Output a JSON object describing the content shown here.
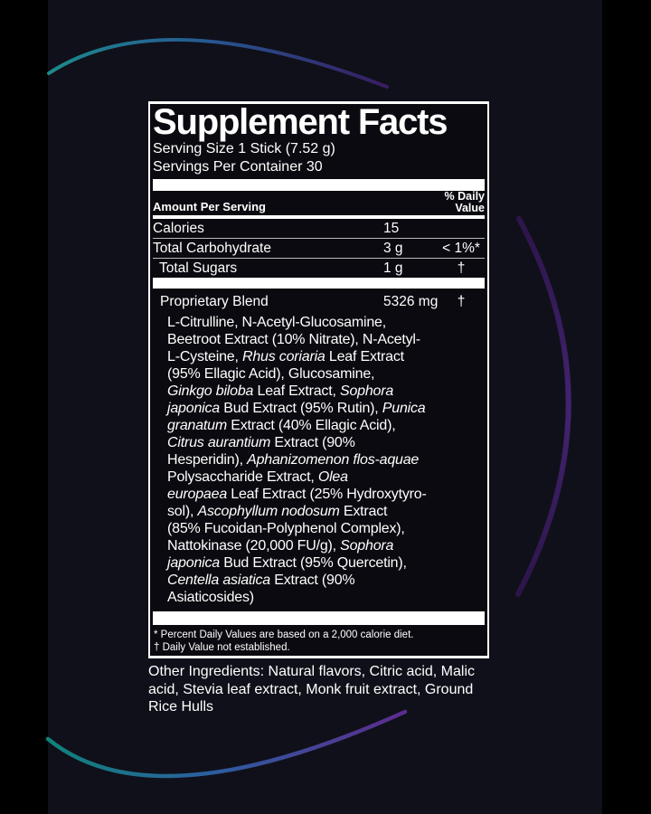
{
  "background": {
    "pillarbox_color": "#000000",
    "canvas_color": "#10101a",
    "arc_teal": "#128c84",
    "arc_blue": "#2b5f9f",
    "arc_purple": "#5c2b8f",
    "arc_right_purple": "#432370"
  },
  "label": {
    "title": "Supplement Facts",
    "serving_size": "Serving Size 1 Stick (7.52 g)",
    "servings_per_container": "Servings Per Container 30",
    "header": {
      "amount_per_serving": "Amount Per Serving",
      "daily_value_line1": "% Daily",
      "daily_value_line2": "Value"
    },
    "rows": [
      {
        "name": "Calories",
        "amount": "15",
        "dv": ""
      },
      {
        "name": "Total Carbohydrate",
        "amount": "3 g",
        "dv": "< 1%*"
      },
      {
        "name": "Total Sugars",
        "amount": "1 g",
        "dv": "†"
      }
    ],
    "blend": {
      "name": "Proprietary Blend",
      "amount": "5326 mg",
      "dv": "†"
    },
    "ingredient_lines": [
      [
        {
          "t": "L-Citrulline, N-Acetyl-Glucosamine,"
        }
      ],
      [
        {
          "t": "Beetroot Extract (10% Nitrate), N-Acetyl-"
        }
      ],
      [
        {
          "t": "L-Cysteine, "
        },
        {
          "t": "Rhus coriaria",
          "i": true
        },
        {
          "t": " Leaf Extract"
        }
      ],
      [
        {
          "t": "(95% Ellagic Acid), Glucosamine,"
        }
      ],
      [
        {
          "t": "Ginkgo biloba",
          "i": true
        },
        {
          "t": " Leaf Extract, "
        },
        {
          "t": "Sophora",
          "i": true
        }
      ],
      [
        {
          "t": "japonica",
          "i": true
        },
        {
          "t": " Bud Extract (95% Rutin), "
        },
        {
          "t": "Punica",
          "i": true
        }
      ],
      [
        {
          "t": "granatum",
          "i": true
        },
        {
          "t": " Extract (40% Ellagic Acid),"
        }
      ],
      [
        {
          "t": "Citrus aurantium",
          "i": true
        },
        {
          "t": " Extract (90%"
        }
      ],
      [
        {
          "t": "Hesperidin), "
        },
        {
          "t": "Aphanizomenon flos-aquae",
          "i": true
        }
      ],
      [
        {
          "t": "Polysaccharide Extract, "
        },
        {
          "t": "Olea",
          "i": true
        }
      ],
      [
        {
          "t": "europaea",
          "i": true
        },
        {
          "t": " Leaf Extract (25% Hydroxytyro-"
        }
      ],
      [
        {
          "t": "sol), "
        },
        {
          "t": "Ascophyllum nodosum",
          "i": true
        },
        {
          "t": " Extract"
        }
      ],
      [
        {
          "t": "(85% Fucoidan-Polyphenol Complex),"
        }
      ],
      [
        {
          "t": "Nattokinase (20,000 FU/g), "
        },
        {
          "t": "Sophora",
          "i": true
        }
      ],
      [
        {
          "t": "japonica",
          "i": true
        },
        {
          "t": " Bud Extract (95% Quercetin),"
        }
      ],
      [
        {
          "t": "Centella asiatica",
          "i": true
        },
        {
          "t": " Extract (90%"
        }
      ],
      [
        {
          "t": "Asiaticosides)"
        }
      ]
    ],
    "footnotes": [
      "* Percent Daily Values are based on a 2,000 calorie diet.",
      "† Daily Value not established."
    ]
  },
  "other_ingredients": {
    "lines": [
      "Other Ingredients: Natural flavors, Citric acid, Malic",
      "acid, Stevia leaf extract, Monk fruit extract, Ground",
      "Rice Hulls"
    ]
  }
}
